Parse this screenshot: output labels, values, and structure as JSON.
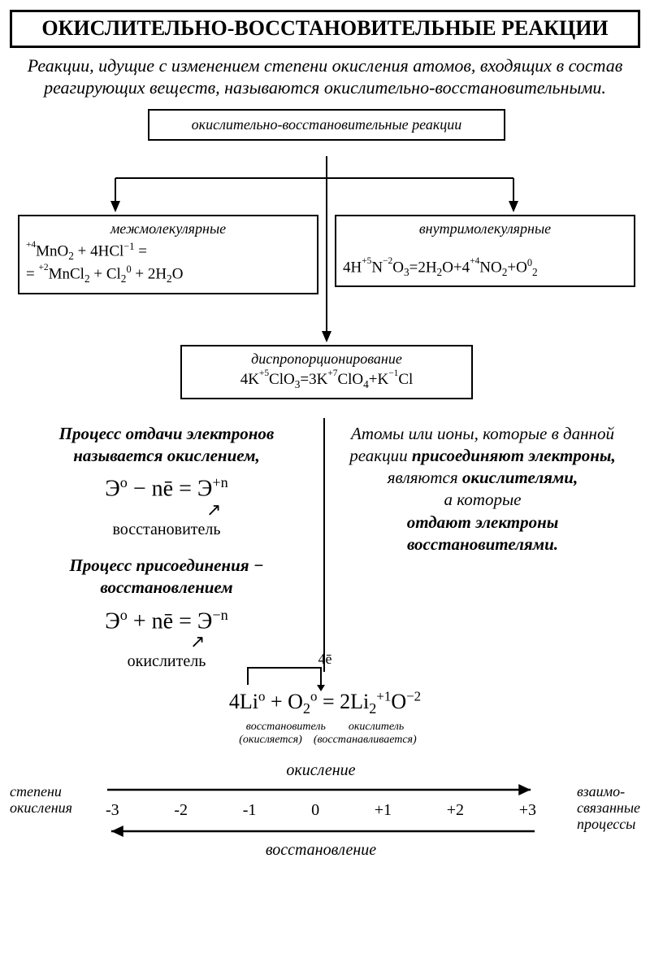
{
  "title": "ОКИСЛИТЕЛЬНО-ВОССТАНОВИТЕЛЬНЫЕ РЕАКЦИИ",
  "definition": "Реакции, идущие с изменением степени окисления атомов, входящих в состав реагирующих веществ, называются окислительно-восстановительными.",
  "diagram": {
    "top_label": "окислительно-восстановительные реакции",
    "left": {
      "label": "межмолекулярные",
      "eq_html": "<span class='ox'>+4</span>MnO<sub>2</sub> + 4HCl<sup>−1</sup> =<br>= <span class='ox'>+2</span>MnCl<sub>2</sub> + Cl<sub>2</sub><sup>0</sup> + 2H<sub>2</sub>O"
    },
    "right": {
      "label": "внутримолекулярные",
      "eq_html": "4H<span class='ox'>+5</span>N<span class='ox'>−2</span>O<sub>3</sub>=2H<sub>2</sub>O+4<span class='ox'>+4</span>NO<sub>2</sub>+O<sup>0</sup><sub>2</sub>"
    },
    "bottom": {
      "label": "диспропорционирование",
      "eq_html": "4K<span class='ox'>+5</span>ClO<sub>3</sub>=3K<span class='ox'>+7</span>ClO<sub>4</sub>+K<span class='ox'>−1</span>Cl"
    }
  },
  "left_col": {
    "p1_html": "<b><i>Процесс отдачи электронов называется окислением,</i></b>",
    "f1_html": "Э<sup>o</sup> − nē = Э<sup>+n</sup>",
    "lbl1": "восстановитель",
    "p2_html": "<b><i>Процесс присоединения − восстановлением</i></b>",
    "f2_html": "Э<sup>o</sup> + nē = Э<sup>−n</sup>",
    "lbl2": "окислитель"
  },
  "right_col_html": "<i>Атомы или ионы, которые в данной реакции</i> <b><i>присоединяют электроны,</i></b> <i>являются</i> <b><i>окислителями,</i></b><br><i>а которые</i><br><b><i>отдают электроны восстановителями.</i></b>",
  "bottom_eq": {
    "bracket_label": "4ē",
    "eq_html": "4Li<sup>o</sup> + O<sub>2</sub><sup>o</sup> = 2Li<sub>2</sub><sup>+1</sup>O<sup>−2</sup>",
    "sub_html": "восстановитель        окислитель\n  (окисляется)    (восстанавливается)"
  },
  "scale": {
    "left_label_html": "степени<br>окисления",
    "right_label_html": "взаимо-<br>связанные<br>процессы",
    "top_label": "окисление",
    "bottom_label": "восстановление",
    "ticks": [
      "-3",
      "-2",
      "-1",
      "0",
      "+1",
      "+2",
      "+3"
    ]
  },
  "colors": {
    "fg": "#000000",
    "bg": "#ffffff",
    "border": "#000000"
  }
}
